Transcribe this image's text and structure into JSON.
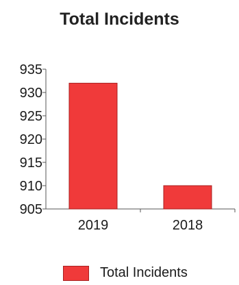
{
  "chart_data": {
    "type": "bar",
    "title": "Total Incidents",
    "categories": [
      "2019",
      "2018"
    ],
    "series": [
      {
        "name": "Total Incidents",
        "values": [
          932,
          910
        ],
        "color": "#f03a3a"
      }
    ],
    "yticks": [
      "935",
      "930",
      "925",
      "920",
      "915",
      "910",
      "905"
    ],
    "ylim": [
      905,
      935
    ],
    "legend_position": "bottom",
    "grid": false
  }
}
